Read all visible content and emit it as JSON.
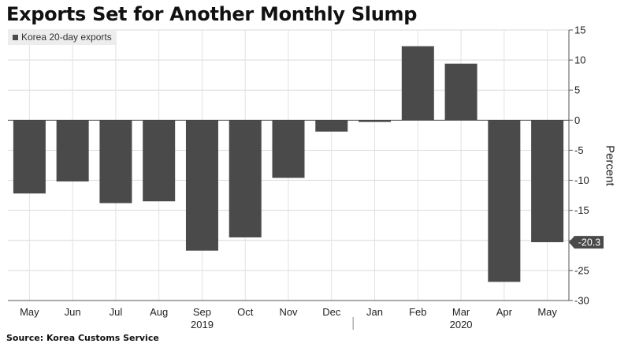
{
  "chart_data": {
    "type": "bar",
    "title": "Exports Set for Another Monthly Slump",
    "categories": [
      "May",
      "Jun",
      "Jul",
      "Aug",
      "Sep",
      "Oct",
      "Nov",
      "Dec",
      "Jan",
      "Feb",
      "Mar",
      "Apr",
      "May"
    ],
    "year_labels": [
      "2019",
      "2020"
    ],
    "series": [
      {
        "name": "Korea 20-day exports",
        "values": [
          -12.2,
          -10.2,
          -13.8,
          -13.5,
          -21.7,
          -19.5,
          -9.6,
          -1.9,
          -0.3,
          12.3,
          9.4,
          -26.9,
          -20.3
        ]
      }
    ],
    "ylabel": "Percent",
    "xlabel": "",
    "ylim": [
      -30,
      15
    ],
    "yticks": [
      "15",
      "10",
      "5",
      "0",
      "-5",
      "-10",
      "-15",
      "-20",
      "-25",
      "-30"
    ],
    "last_value_label": "-20.3",
    "legend_position": "top-left",
    "grid": true,
    "bar_color": "#4a4a4a",
    "source": "Source: Korea Customs Service"
  }
}
